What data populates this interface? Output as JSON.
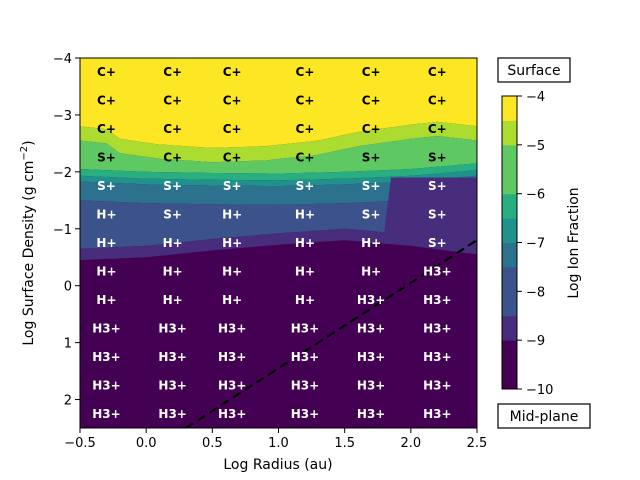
{
  "chart_data": {
    "type": "heatmap",
    "title": "",
    "xlabel": "Log Radius (au)",
    "ylabel_main": "Log Surface Density (g cm",
    "ylabel_sup": "−2",
    "ylabel_close": ")",
    "xlim": [
      -0.5,
      2.5
    ],
    "ylim": [
      2.5,
      -4
    ],
    "x_ticks": [
      "−0.5",
      "0.0",
      "0.5",
      "1.0",
      "1.5",
      "2.0",
      "2.5"
    ],
    "x_tick_values": [
      -0.5,
      0.0,
      0.5,
      1.0,
      1.5,
      2.0,
      2.5
    ],
    "y_ticks": [
      "−4",
      "−3",
      "−2",
      "−1",
      "0",
      "1",
      "2"
    ],
    "y_tick_values": [
      -4,
      -3,
      -2,
      -1,
      0,
      1,
      2
    ],
    "colorbar": {
      "label": "Log Ion Fraction",
      "range": [
        -10,
        -4
      ],
      "ticks": [
        "−4",
        "−5",
        "−6",
        "−7",
        "−8",
        "−9",
        "−10"
      ],
      "tick_values": [
        -4,
        -5,
        -6,
        -7,
        -8,
        -9,
        -10
      ],
      "levels": [
        -10,
        -9.5,
        -9,
        -8.5,
        -8,
        -7.5,
        -7,
        -6.5,
        -6,
        -5.5,
        -5,
        -4.5,
        -4
      ],
      "colors": [
        "#440154",
        "#472d7b",
        "#3b528b",
        "#2c728e",
        "#21918c",
        "#28ae80",
        "#5ec962",
        "#addc30",
        "#fde725"
      ],
      "top_label": "Surface",
      "bottom_label": "Mid-plane"
    },
    "ion_grid": {
      "x": [
        -0.3,
        0.2,
        0.65,
        1.2,
        1.7,
        2.2
      ],
      "y": [
        -3.75,
        -3.25,
        -2.75,
        -2.25,
        -1.75,
        -1.25,
        -0.75,
        -0.25,
        0.25,
        0.75,
        1.25,
        1.75,
        2.25
      ],
      "labels": [
        [
          "C+",
          "C+",
          "C+",
          "C+",
          "C+",
          "C+"
        ],
        [
          "C+",
          "C+",
          "C+",
          "C+",
          "C+",
          "C+"
        ],
        [
          "C+",
          "C+",
          "C+",
          "C+",
          "C+",
          "C+"
        ],
        [
          "S+",
          "C+",
          "C+",
          "C+",
          "S+",
          "S+"
        ],
        [
          "S+",
          "S+",
          "S+",
          "S+",
          "S+",
          "S+"
        ],
        [
          "H+",
          "S+",
          "H+",
          "H+",
          "S+",
          "S+"
        ],
        [
          "H+",
          "H+",
          "H+",
          "H+",
          "H+",
          "S+"
        ],
        [
          "H+",
          "H+",
          "H+",
          "H+",
          "H+",
          "H3+"
        ],
        [
          "H+",
          "H+",
          "H+",
          "H+",
          "H3+",
          "H3+"
        ],
        [
          "H3+",
          "H3+",
          "H3+",
          "H3+",
          "H3+",
          "H3+"
        ],
        [
          "H3+",
          "H3+",
          "H3+",
          "H3+",
          "H3+",
          "H3+"
        ],
        [
          "H3+",
          "H3+",
          "H3+",
          "H3+",
          "H3+",
          "H3+"
        ],
        [
          "H3+",
          "H3+",
          "H3+",
          "H3+",
          "H3+",
          "H3+"
        ]
      ]
    },
    "dashed_line": {
      "x": [
        0.3,
        2.5
      ],
      "y": [
        2.5,
        -0.8
      ],
      "color": "#000000"
    },
    "regions": {
      "yellow_boundary": {
        "x": [
          -0.5,
          -0.3,
          -0.2,
          0.1,
          0.5,
          0.9,
          1.3,
          1.6,
          2.0,
          2.2,
          2.5
        ],
        "y": [
          -2.8,
          -2.75,
          -2.58,
          -2.48,
          -2.42,
          -2.45,
          -2.55,
          -2.7,
          -2.83,
          -2.88,
          -2.8
        ]
      },
      "green_boundary": {
        "x": [
          -0.5,
          0.0,
          0.5,
          1.0,
          1.5,
          2.0,
          2.5
        ],
        "y": [
          -2.05,
          -2.0,
          -1.98,
          -1.97,
          -2.0,
          -2.05,
          -2.15
        ]
      },
      "dark_boundary": {
        "x": [
          -0.5,
          0.0,
          0.5,
          1.0,
          1.5,
          2.0,
          2.5
        ],
        "y": [
          -0.45,
          -0.5,
          -0.62,
          -0.72,
          -0.8,
          -0.7,
          -0.55
        ]
      }
    }
  }
}
